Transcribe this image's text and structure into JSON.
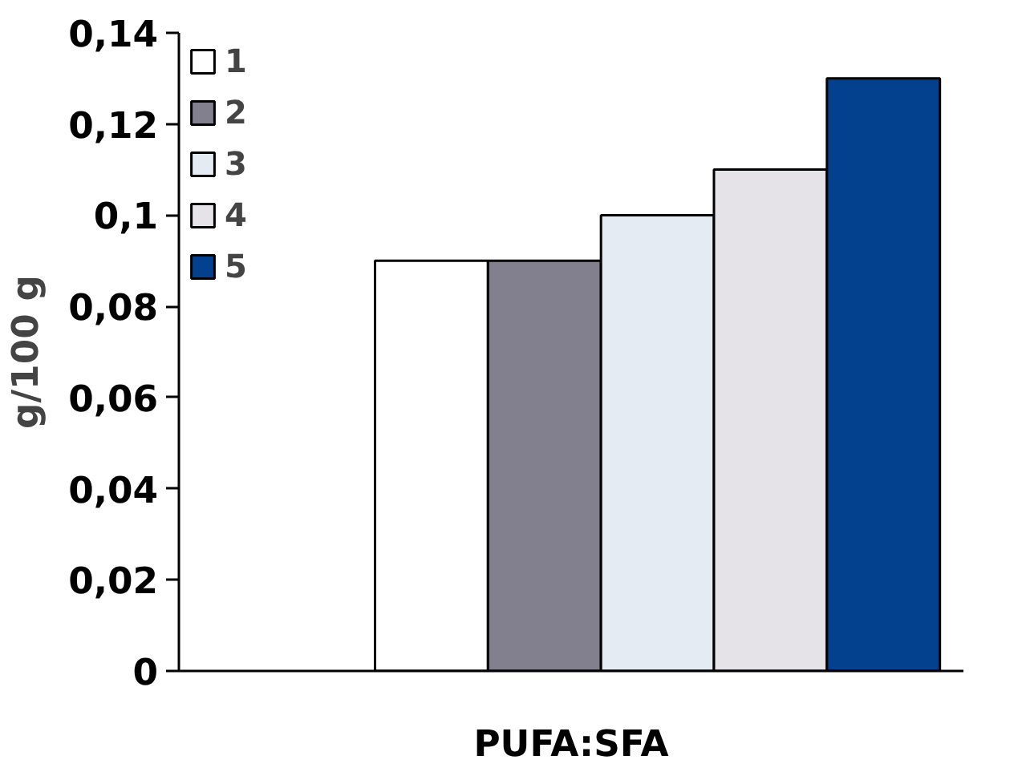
{
  "chart_data": {
    "type": "bar",
    "categories": [
      "PUFA:SFA"
    ],
    "ylabel": "g/100 g",
    "series": [
      {
        "name": "1",
        "color": "#ffffff",
        "values": [
          0.09
        ]
      },
      {
        "name": "2",
        "color": "#82808f",
        "values": [
          0.09
        ]
      },
      {
        "name": "3",
        "color": "#e4ebf3",
        "values": [
          0.1
        ]
      },
      {
        "name": "4",
        "color": "#e5e3e8",
        "values": [
          0.11
        ]
      },
      {
        "name": "5",
        "color": "#03418f",
        "values": [
          0.13
        ]
      }
    ],
    "ylim": [
      0,
      0.14
    ],
    "yticks": [
      0,
      {
        "value": 0.02,
        "label": "0,02"
      },
      {
        "value": 0.04,
        "label": "0,04"
      },
      {
        "value": 0.06,
        "label": "0,06"
      },
      {
        "value": 0.08,
        "label": "0,08"
      },
      {
        "value": 0.1,
        "label": "0,1"
      },
      {
        "value": 0.12,
        "label": "0,12"
      },
      {
        "value": 0.14,
        "label": "0,14"
      }
    ],
    "grid": false,
    "legend": "top left"
  }
}
